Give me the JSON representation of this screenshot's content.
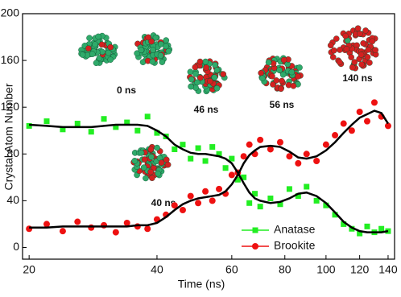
{
  "chart_data": {
    "type": "scatter",
    "x_label": "Time (ns)",
    "y_label": "Crystal Atom Number",
    "x": [
      20,
      22,
      24,
      26,
      28,
      30,
      32,
      34,
      36,
      38,
      40,
      42,
      44,
      46,
      48,
      50,
      52,
      54,
      56,
      58,
      60,
      62,
      64,
      66,
      68,
      70,
      74,
      78,
      82,
      86,
      90,
      95,
      100,
      105,
      110,
      115,
      120,
      125,
      130,
      135,
      140
    ],
    "series": [
      {
        "name": "Anatase",
        "color": "#22ee22",
        "marker": "square",
        "values": [
          104,
          108,
          101,
          106,
          99,
          110,
          103,
          107,
          100,
          112,
          98,
          95,
          84,
          88,
          76,
          85,
          74,
          86,
          80,
          68,
          76,
          58,
          60,
          38,
          46,
          35,
          42,
          37,
          50,
          44,
          52,
          40,
          36,
          28,
          20,
          16,
          12,
          18,
          13,
          16,
          14
        ],
        "smooth": [
          105,
          104,
          103,
          103,
          103,
          104,
          105,
          105,
          105,
          104,
          100,
          95,
          88,
          84,
          81,
          80,
          80,
          79,
          78,
          76,
          72,
          64,
          55,
          47,
          42,
          40,
          38,
          39,
          42,
          46,
          47,
          44,
          38,
          30,
          22,
          17,
          14,
          13,
          13,
          13,
          14
        ]
      },
      {
        "name": "Brookite",
        "color": "#ee1111",
        "marker": "circle",
        "values": [
          16,
          20,
          14,
          22,
          17,
          19,
          13,
          21,
          18,
          16,
          24,
          28,
          36,
          32,
          44,
          38,
          48,
          40,
          50,
          46,
          62,
          64,
          78,
          88,
          80,
          92,
          84,
          90,
          78,
          72,
          80,
          74,
          88,
          96,
          106,
          100,
          116,
          108,
          124,
          112,
          104
        ],
        "smooth": [
          17,
          17,
          18,
          18,
          18,
          18,
          18,
          18,
          19,
          19,
          21,
          26,
          32,
          37,
          40,
          42,
          43,
          44,
          45,
          48,
          54,
          62,
          72,
          79,
          83,
          86,
          87,
          86,
          82,
          77,
          76,
          78,
          83,
          90,
          98,
          105,
          111,
          114,
          117,
          115,
          106
        ]
      }
    ],
    "xlim": [
      19.3,
      145
    ],
    "xticks": [
      20,
      40,
      60,
      80,
      100,
      120,
      140
    ],
    "log_x": true,
    "ylim": [
      -10,
      200
    ],
    "yticks": [
      0,
      40,
      80,
      120,
      160,
      200
    ],
    "legend": "lower-right",
    "smooth_color": "#000000",
    "annotations": [
      {
        "text": "0 ns"
      },
      {
        "text": "46 ns"
      },
      {
        "text": "56 ns"
      },
      {
        "text": "140 ns"
      },
      {
        "text": "40 ns"
      }
    ]
  }
}
